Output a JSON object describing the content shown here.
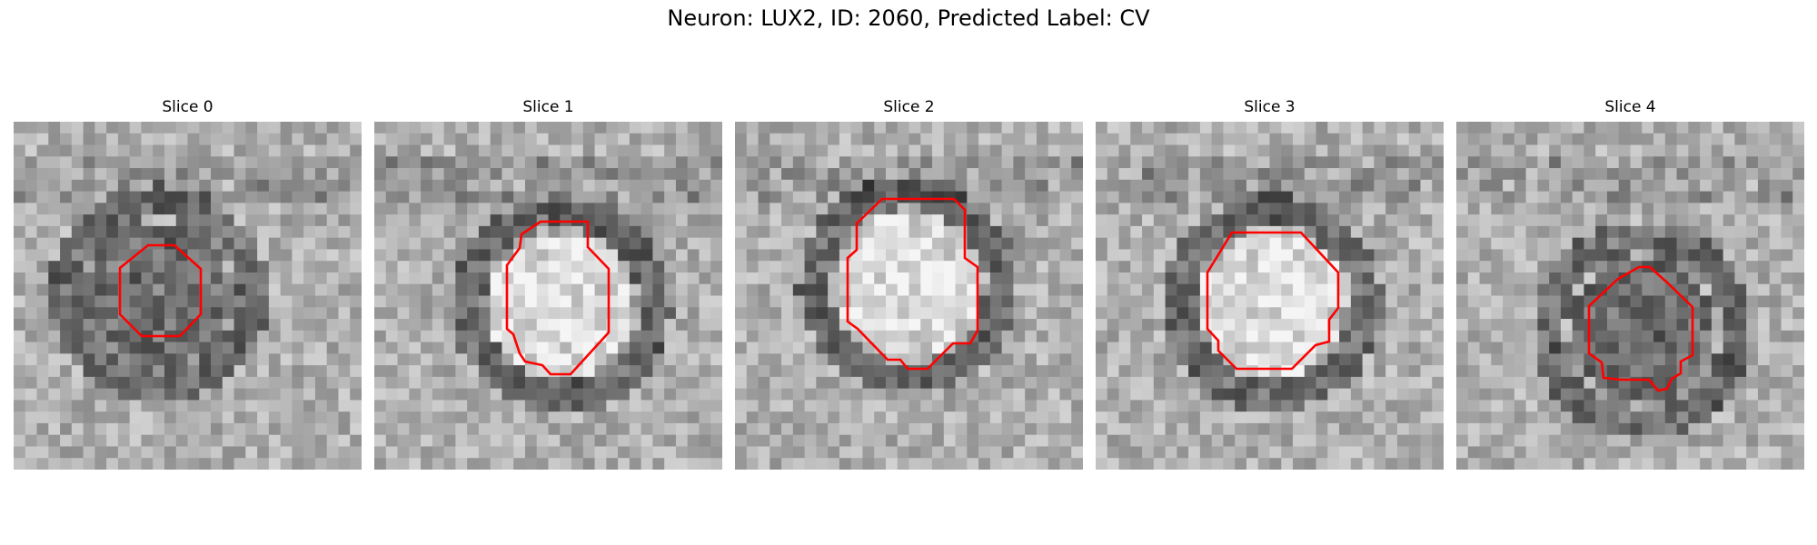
{
  "figure": {
    "title": "Neuron: LUX2, ID: 2060, Predicted Label: CV"
  },
  "panels": [
    {
      "title": "Slice 0",
      "seed": 11,
      "roi": "dark",
      "mask_color": "#ff0000"
    },
    {
      "title": "Slice 1",
      "seed": 23,
      "roi": "bright",
      "mask_color": "#ff0000"
    },
    {
      "title": "Slice 2",
      "seed": 37,
      "roi": "bright",
      "mask_color": "#ff0000"
    },
    {
      "title": "Slice 3",
      "seed": 41,
      "roi": "bright",
      "mask_color": "#ff0000"
    },
    {
      "title": "Slice 4",
      "seed": 53,
      "roi": "dark",
      "mask_color": "#ff0000"
    }
  ]
}
